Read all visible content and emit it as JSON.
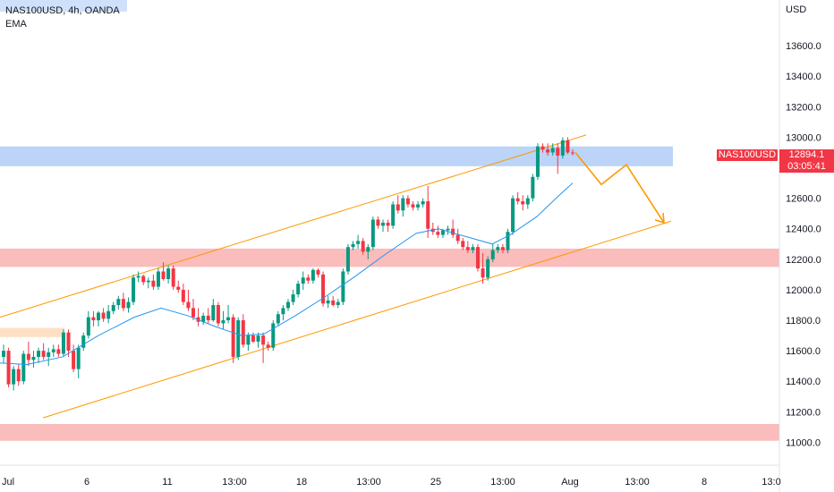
{
  "header": {
    "symbol_line": "NAS100USD, 4h, OANDA",
    "indicator": "EMA"
  },
  "currency": "USD",
  "price_tag": {
    "symbol": "NAS100USD",
    "last": "12894.1",
    "countdown": "03:05:41"
  },
  "colors": {
    "up": "#089981",
    "down": "#f23645",
    "ema": "#2196f3",
    "channel": "#ff9800",
    "blue_zone": "#bbd4f7",
    "red_zone": "#fbbcbc",
    "orange_zone": "#fde0c4"
  },
  "chart_data": {
    "type": "candlestick",
    "timeframe": "4h",
    "y_ticks": [
      "13600.0",
      "13400.0",
      "13200.0",
      "13000.0",
      "12800.0",
      "12600.0",
      "12400.0",
      "12200.0",
      "12000.0",
      "11800.0",
      "11600.0",
      "11400.0",
      "11200.0",
      "11000.0"
    ],
    "x_ticks": [
      "Jul",
      "6",
      "11",
      "13:00",
      "18",
      "13:00",
      "25",
      "13:00",
      "Aug",
      "13:00",
      "8",
      "13:0"
    ],
    "ylim": [
      10850,
      13900
    ],
    "zones": [
      {
        "kind": "resistance",
        "y_from": 12810,
        "y_to": 12940
      },
      {
        "kind": "support",
        "y_from": 12150,
        "y_to": 12270
      },
      {
        "kind": "support",
        "y_from": 11010,
        "y_to": 11120
      },
      {
        "kind": "minor",
        "y_from": 11690,
        "y_to": 11750
      }
    ],
    "channel": {
      "upper": [
        [
          0,
          11820
        ],
        [
          655,
          13015
        ]
      ],
      "lower": [
        [
          48,
          11160
        ],
        [
          750,
          12450
        ]
      ]
    },
    "projection": [
      [
        643,
        12900
      ],
      [
        672,
        12690
      ],
      [
        700,
        12820
      ],
      [
        742,
        12440
      ]
    ],
    "candles": [
      [
        11560,
        11640,
        11520,
        11600
      ],
      [
        11600,
        11620,
        11360,
        11380
      ],
      [
        11380,
        11500,
        11340,
        11480
      ],
      [
        11480,
        11510,
        11370,
        11400
      ],
      [
        11400,
        11600,
        11380,
        11580
      ],
      [
        11580,
        11660,
        11500,
        11540
      ],
      [
        11540,
        11600,
        11490,
        11560
      ],
      [
        11560,
        11620,
        11520,
        11600
      ],
      [
        11600,
        11650,
        11540,
        11560
      ],
      [
        11560,
        11620,
        11500,
        11590
      ],
      [
        11590,
        11640,
        11560,
        11610
      ],
      [
        11610,
        11640,
        11560,
        11580
      ],
      [
        11580,
        11740,
        11560,
        11720
      ],
      [
        11720,
        11740,
        11560,
        11600
      ],
      [
        11600,
        11640,
        11460,
        11480
      ],
      [
        11480,
        11640,
        11420,
        11620
      ],
      [
        11620,
        11720,
        11600,
        11700
      ],
      [
        11700,
        11860,
        11680,
        11820
      ],
      [
        11820,
        11860,
        11760,
        11800
      ],
      [
        11800,
        11860,
        11760,
        11850
      ],
      [
        11850,
        11880,
        11790,
        11810
      ],
      [
        11810,
        11900,
        11780,
        11860
      ],
      [
        11860,
        11920,
        11840,
        11900
      ],
      [
        11900,
        11960,
        11870,
        11940
      ],
      [
        11940,
        11980,
        11860,
        11880
      ],
      [
        11880,
        11950,
        11850,
        11920
      ],
      [
        11920,
        12100,
        11900,
        12080
      ],
      [
        12080,
        12120,
        12050,
        12090
      ],
      [
        12090,
        12100,
        12030,
        12050
      ],
      [
        12050,
        12080,
        12010,
        12060
      ],
      [
        12060,
        12100,
        12000,
        12020
      ],
      [
        12020,
        12140,
        12000,
        12120
      ],
      [
        12120,
        12180,
        12060,
        12070
      ],
      [
        12070,
        12160,
        12040,
        12140
      ],
      [
        12140,
        12160,
        12000,
        12020
      ],
      [
        12020,
        12060,
        11980,
        12000
      ],
      [
        12000,
        12040,
        11900,
        11920
      ],
      [
        11920,
        12000,
        11860,
        11880
      ],
      [
        11880,
        11940,
        11800,
        11820
      ],
      [
        11820,
        11880,
        11760,
        11790
      ],
      [
        11790,
        11850,
        11770,
        11830
      ],
      [
        11830,
        11880,
        11780,
        11800
      ],
      [
        11800,
        11940,
        11790,
        11900
      ],
      [
        11900,
        11920,
        11760,
        11780
      ],
      [
        11780,
        11860,
        11740,
        11800
      ],
      [
        11800,
        11900,
        11780,
        11820
      ],
      [
        11820,
        11840,
        11520,
        11560
      ],
      [
        11560,
        11820,
        11540,
        11800
      ],
      [
        11800,
        11840,
        11620,
        11640
      ],
      [
        11640,
        11720,
        11600,
        11700
      ],
      [
        11700,
        11720,
        11650,
        11660
      ],
      [
        11660,
        11720,
        11620,
        11700
      ],
      [
        11700,
        11720,
        11520,
        11640
      ],
      [
        11640,
        11660,
        11600,
        11620
      ],
      [
        11620,
        11800,
        11600,
        11780
      ],
      [
        11780,
        11860,
        11760,
        11840
      ],
      [
        11840,
        11900,
        11800,
        11880
      ],
      [
        11880,
        11940,
        11860,
        11920
      ],
      [
        11920,
        12000,
        11900,
        11970
      ],
      [
        11970,
        12060,
        11950,
        12040
      ],
      [
        12040,
        12120,
        12000,
        12080
      ],
      [
        12080,
        12100,
        12040,
        12060
      ],
      [
        12060,
        12140,
        12040,
        12130
      ],
      [
        12130,
        12140,
        12080,
        12100
      ],
      [
        12100,
        12120,
        11890,
        11910
      ],
      [
        11910,
        11960,
        11880,
        11930
      ],
      [
        11930,
        11960,
        11890,
        11900
      ],
      [
        11900,
        11940,
        11880,
        11920
      ],
      [
        11920,
        12140,
        11900,
        12120
      ],
      [
        12120,
        12300,
        12100,
        12280
      ],
      [
        12280,
        12320,
        12260,
        12300
      ],
      [
        12300,
        12360,
        12270,
        12320
      ],
      [
        12320,
        12340,
        12230,
        12250
      ],
      [
        12250,
        12300,
        12200,
        12280
      ],
      [
        12280,
        12480,
        12260,
        12460
      ],
      [
        12460,
        12480,
        12400,
        12420
      ],
      [
        12420,
        12460,
        12380,
        12440
      ],
      [
        12440,
        12460,
        12380,
        12420
      ],
      [
        12420,
        12580,
        12400,
        12560
      ],
      [
        12560,
        12620,
        12500,
        12520
      ],
      [
        12520,
        12620,
        12480,
        12600
      ],
      [
        12600,
        12620,
        12540,
        12560
      ],
      [
        12560,
        12580,
        12520,
        12540
      ],
      [
        12540,
        12580,
        12520,
        12560
      ],
      [
        12560,
        12600,
        12540,
        12580
      ],
      [
        12580,
        12680,
        12340,
        12400
      ],
      [
        12400,
        12440,
        12360,
        12380
      ],
      [
        12380,
        12420,
        12340,
        12360
      ],
      [
        12360,
        12400,
        12340,
        12390
      ],
      [
        12390,
        12420,
        12360,
        12400
      ],
      [
        12400,
        12460,
        12340,
        12360
      ],
      [
        12360,
        12400,
        12300,
        12320
      ],
      [
        12320,
        12340,
        12260,
        12280
      ],
      [
        12280,
        12320,
        12240,
        12260
      ],
      [
        12260,
        12300,
        12240,
        12280
      ],
      [
        12280,
        12300,
        12120,
        12140
      ],
      [
        12140,
        12240,
        12040,
        12080
      ],
      [
        12080,
        12220,
        12060,
        12200
      ],
      [
        12200,
        12300,
        12180,
        12260
      ],
      [
        12260,
        12300,
        12240,
        12280
      ],
      [
        12280,
        12300,
        12240,
        12260
      ],
      [
        12260,
        12400,
        12240,
        12380
      ],
      [
        12380,
        12620,
        12360,
        12600
      ],
      [
        12600,
        12640,
        12560,
        12580
      ],
      [
        12580,
        12620,
        12520,
        12560
      ],
      [
        12560,
        12620,
        12530,
        12600
      ],
      [
        12600,
        12760,
        12580,
        12740
      ],
      [
        12740,
        12960,
        12720,
        12940
      ],
      [
        12940,
        12960,
        12900,
        12920
      ],
      [
        12920,
        12960,
        12880,
        12900
      ],
      [
        12900,
        12960,
        12880,
        12930
      ],
      [
        12930,
        12960,
        12760,
        12880
      ],
      [
        12880,
        13000,
        12860,
        12980
      ],
      [
        12980,
        13000,
        12890,
        12900
      ],
      [
        12900,
        12920,
        12880,
        12894
      ]
    ],
    "ema": [
      [
        0,
        11520
      ],
      [
        30,
        11510
      ],
      [
        70,
        11560
      ],
      [
        110,
        11700
      ],
      [
        150,
        11820
      ],
      [
        180,
        11880
      ],
      [
        210,
        11830
      ],
      [
        240,
        11760
      ],
      [
        270,
        11700
      ],
      [
        295,
        11710
      ],
      [
        330,
        11830
      ],
      [
        365,
        11960
      ],
      [
        395,
        12080
      ],
      [
        430,
        12230
      ],
      [
        465,
        12370
      ],
      [
        490,
        12400
      ],
      [
        520,
        12350
      ],
      [
        550,
        12300
      ],
      [
        570,
        12360
      ],
      [
        600,
        12480
      ],
      [
        625,
        12620
      ],
      [
        640,
        12700
      ]
    ]
  }
}
